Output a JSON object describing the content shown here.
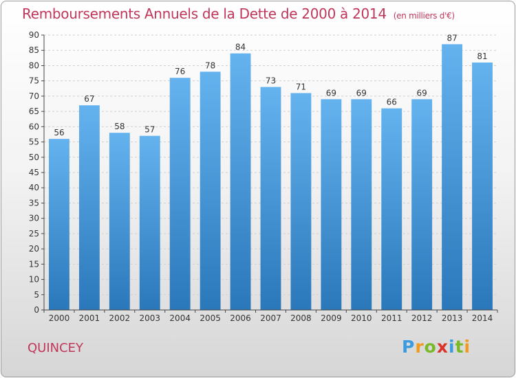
{
  "title": "Remboursements Annuels de la Dette de 2000 à 2014",
  "subtitle": "(en milliers d'€)",
  "city": "QUINCEY",
  "logo": {
    "letters": [
      "P",
      "r",
      "o",
      "x",
      "i",
      "t",
      "i"
    ],
    "colors": [
      "#3a9be0",
      "#f29a1c",
      "#79b928",
      "#d9332a",
      "#3a9be0",
      "#79b928",
      "#f29a1c"
    ]
  },
  "colors": {
    "bar_top": "#64b2ee",
    "bar_bottom": "#2a78ba",
    "title": "#c0365a",
    "axis": "#444444"
  },
  "chart_data": {
    "type": "bar",
    "title": "Remboursements Annuels de la Dette de 2000 à 2014",
    "subtitle": "(en milliers d'€)",
    "categories": [
      "2000",
      "2001",
      "2002",
      "2003",
      "2004",
      "2005",
      "2006",
      "2007",
      "2008",
      "2009",
      "2010",
      "2011",
      "2012",
      "2013",
      "2014"
    ],
    "values": [
      56,
      67,
      58,
      57,
      76,
      78,
      84,
      73,
      71,
      69,
      69,
      66,
      69,
      87,
      81
    ],
    "ylim": [
      0,
      90
    ],
    "yticks": [
      0,
      5,
      10,
      15,
      20,
      25,
      30,
      35,
      40,
      45,
      50,
      55,
      60,
      65,
      70,
      75,
      80,
      85,
      90
    ],
    "grid": true,
    "legend": "none"
  }
}
